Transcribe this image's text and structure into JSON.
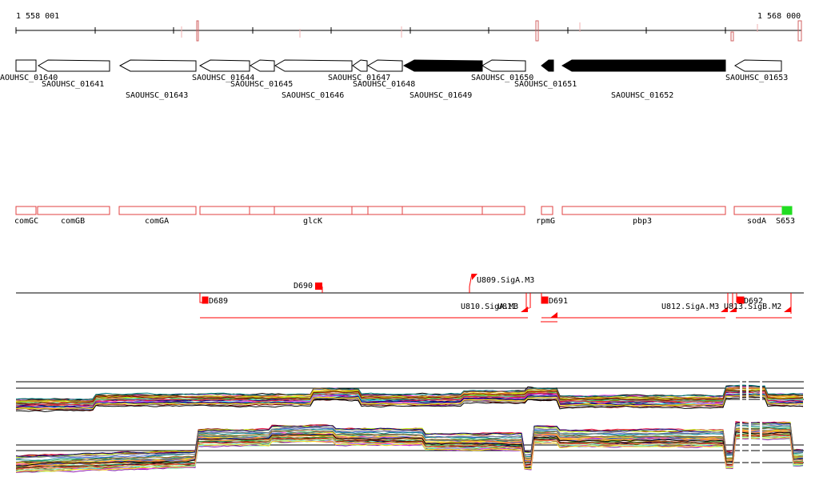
{
  "coordinates": {
    "start_label": "1 558 001",
    "end_label": "1 568 000"
  },
  "genes_top": [
    {
      "label": "AOUHSC_01640",
      "strand": "+",
      "filled": false
    },
    {
      "label": "SAOUHSC_01641",
      "strand": "-",
      "filled": false
    },
    {
      "label": "SAOUHSC_01643",
      "strand": "-",
      "filled": false
    },
    {
      "label": "SAOUHSC_01644",
      "strand": "-",
      "filled": false
    },
    {
      "label": "SAOUHSC_01645",
      "strand": "-",
      "filled": false
    },
    {
      "label": "SAOUHSC_01646",
      "strand": "-",
      "filled": false
    },
    {
      "label": "SAOUHSC_01647",
      "strand": "-",
      "filled": false
    },
    {
      "label": "SAOUHSC_01648",
      "strand": "-",
      "filled": false
    },
    {
      "label": "SAOUHSC_01649",
      "strand": "-",
      "filled": true
    },
    {
      "label": "SAOUHSC_01650",
      "strand": "-",
      "filled": false
    },
    {
      "label": "SAOUHSC_01651",
      "strand": "-",
      "filled": true
    },
    {
      "label": "SAOUHSC_01652",
      "strand": "-",
      "filled": true
    },
    {
      "label": "SAOUHSC_01653",
      "strand": "-",
      "filled": false
    }
  ],
  "operon_labels": [
    "comGC",
    "comGB",
    "comGA",
    "glcK",
    "rpmG",
    "pbp3",
    "sodA",
    "S653"
  ],
  "feature_labels": [
    "D690",
    "U809.SigA.M3",
    "D689",
    "D691",
    "U810.SigA.M3",
    "U811",
    "U812.SigA.M3",
    "D692",
    "U813.SigB.M2"
  ],
  "colors": {
    "outline_red": "#e04040",
    "filled_gene": "#000000",
    "green_box": "#22dd22",
    "feature_red": "#ff0000"
  }
}
